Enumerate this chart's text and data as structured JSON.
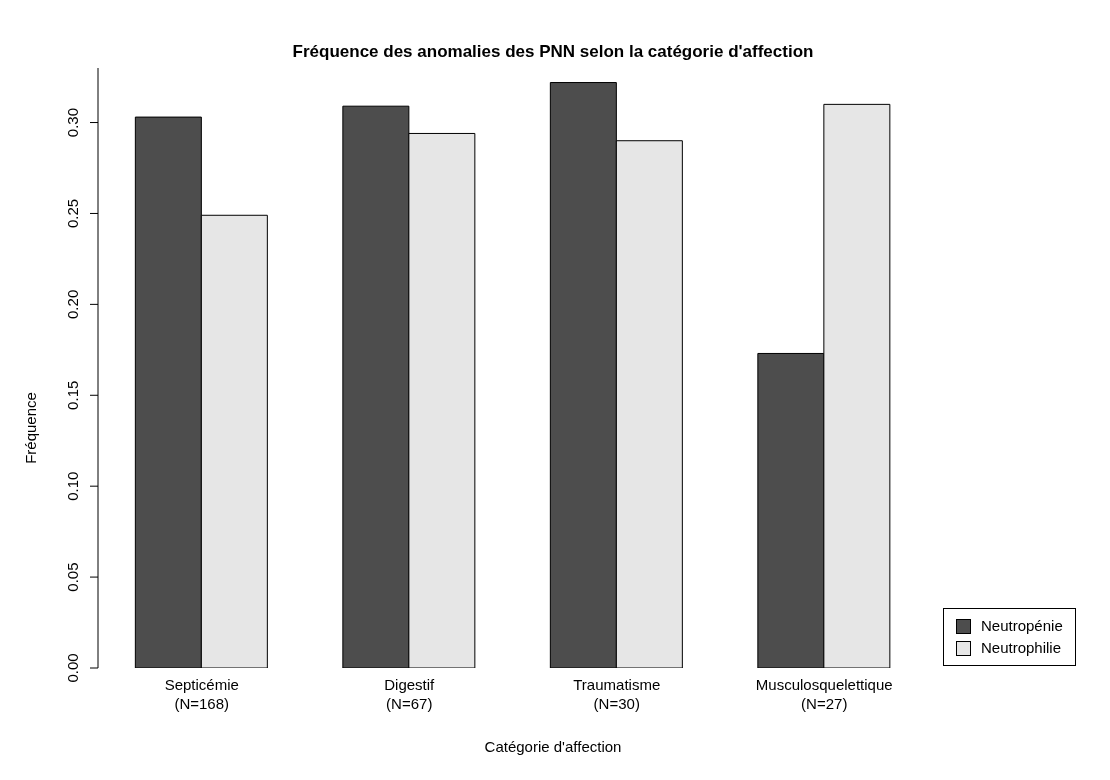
{
  "chart_data": {
    "type": "bar",
    "title": "Fréquence des anomalies des PNN selon la catégorie d'affection",
    "xlabel": "Catégorie d'affection",
    "ylabel": "Fréquence",
    "categories": [
      "Septicémie\n(N=168)",
      "Digestif\n(N=67)",
      "Traumatisme\n(N=30)",
      "Musculosquelettique\n(N=27)"
    ],
    "series": [
      {
        "name": "Neutropénie",
        "color": "#4d4d4d",
        "values": [
          0.303,
          0.309,
          0.322,
          0.173
        ]
      },
      {
        "name": "Neutrophilie",
        "color": "#e6e6e6",
        "values": [
          0.249,
          0.294,
          0.29,
          0.31
        ]
      }
    ],
    "ylim": [
      0,
      0.33
    ],
    "yticks": [
      {
        "value": 0,
        "label": "0.00"
      },
      0.05,
      {
        "value": 0.1,
        "label": "0.10"
      },
      0.15,
      {
        "value": 0.2,
        "label": "0.20"
      },
      0.25,
      {
        "value": 0.3,
        "label": "0.30"
      }
    ],
    "grid": false,
    "legend": "bottom right"
  }
}
